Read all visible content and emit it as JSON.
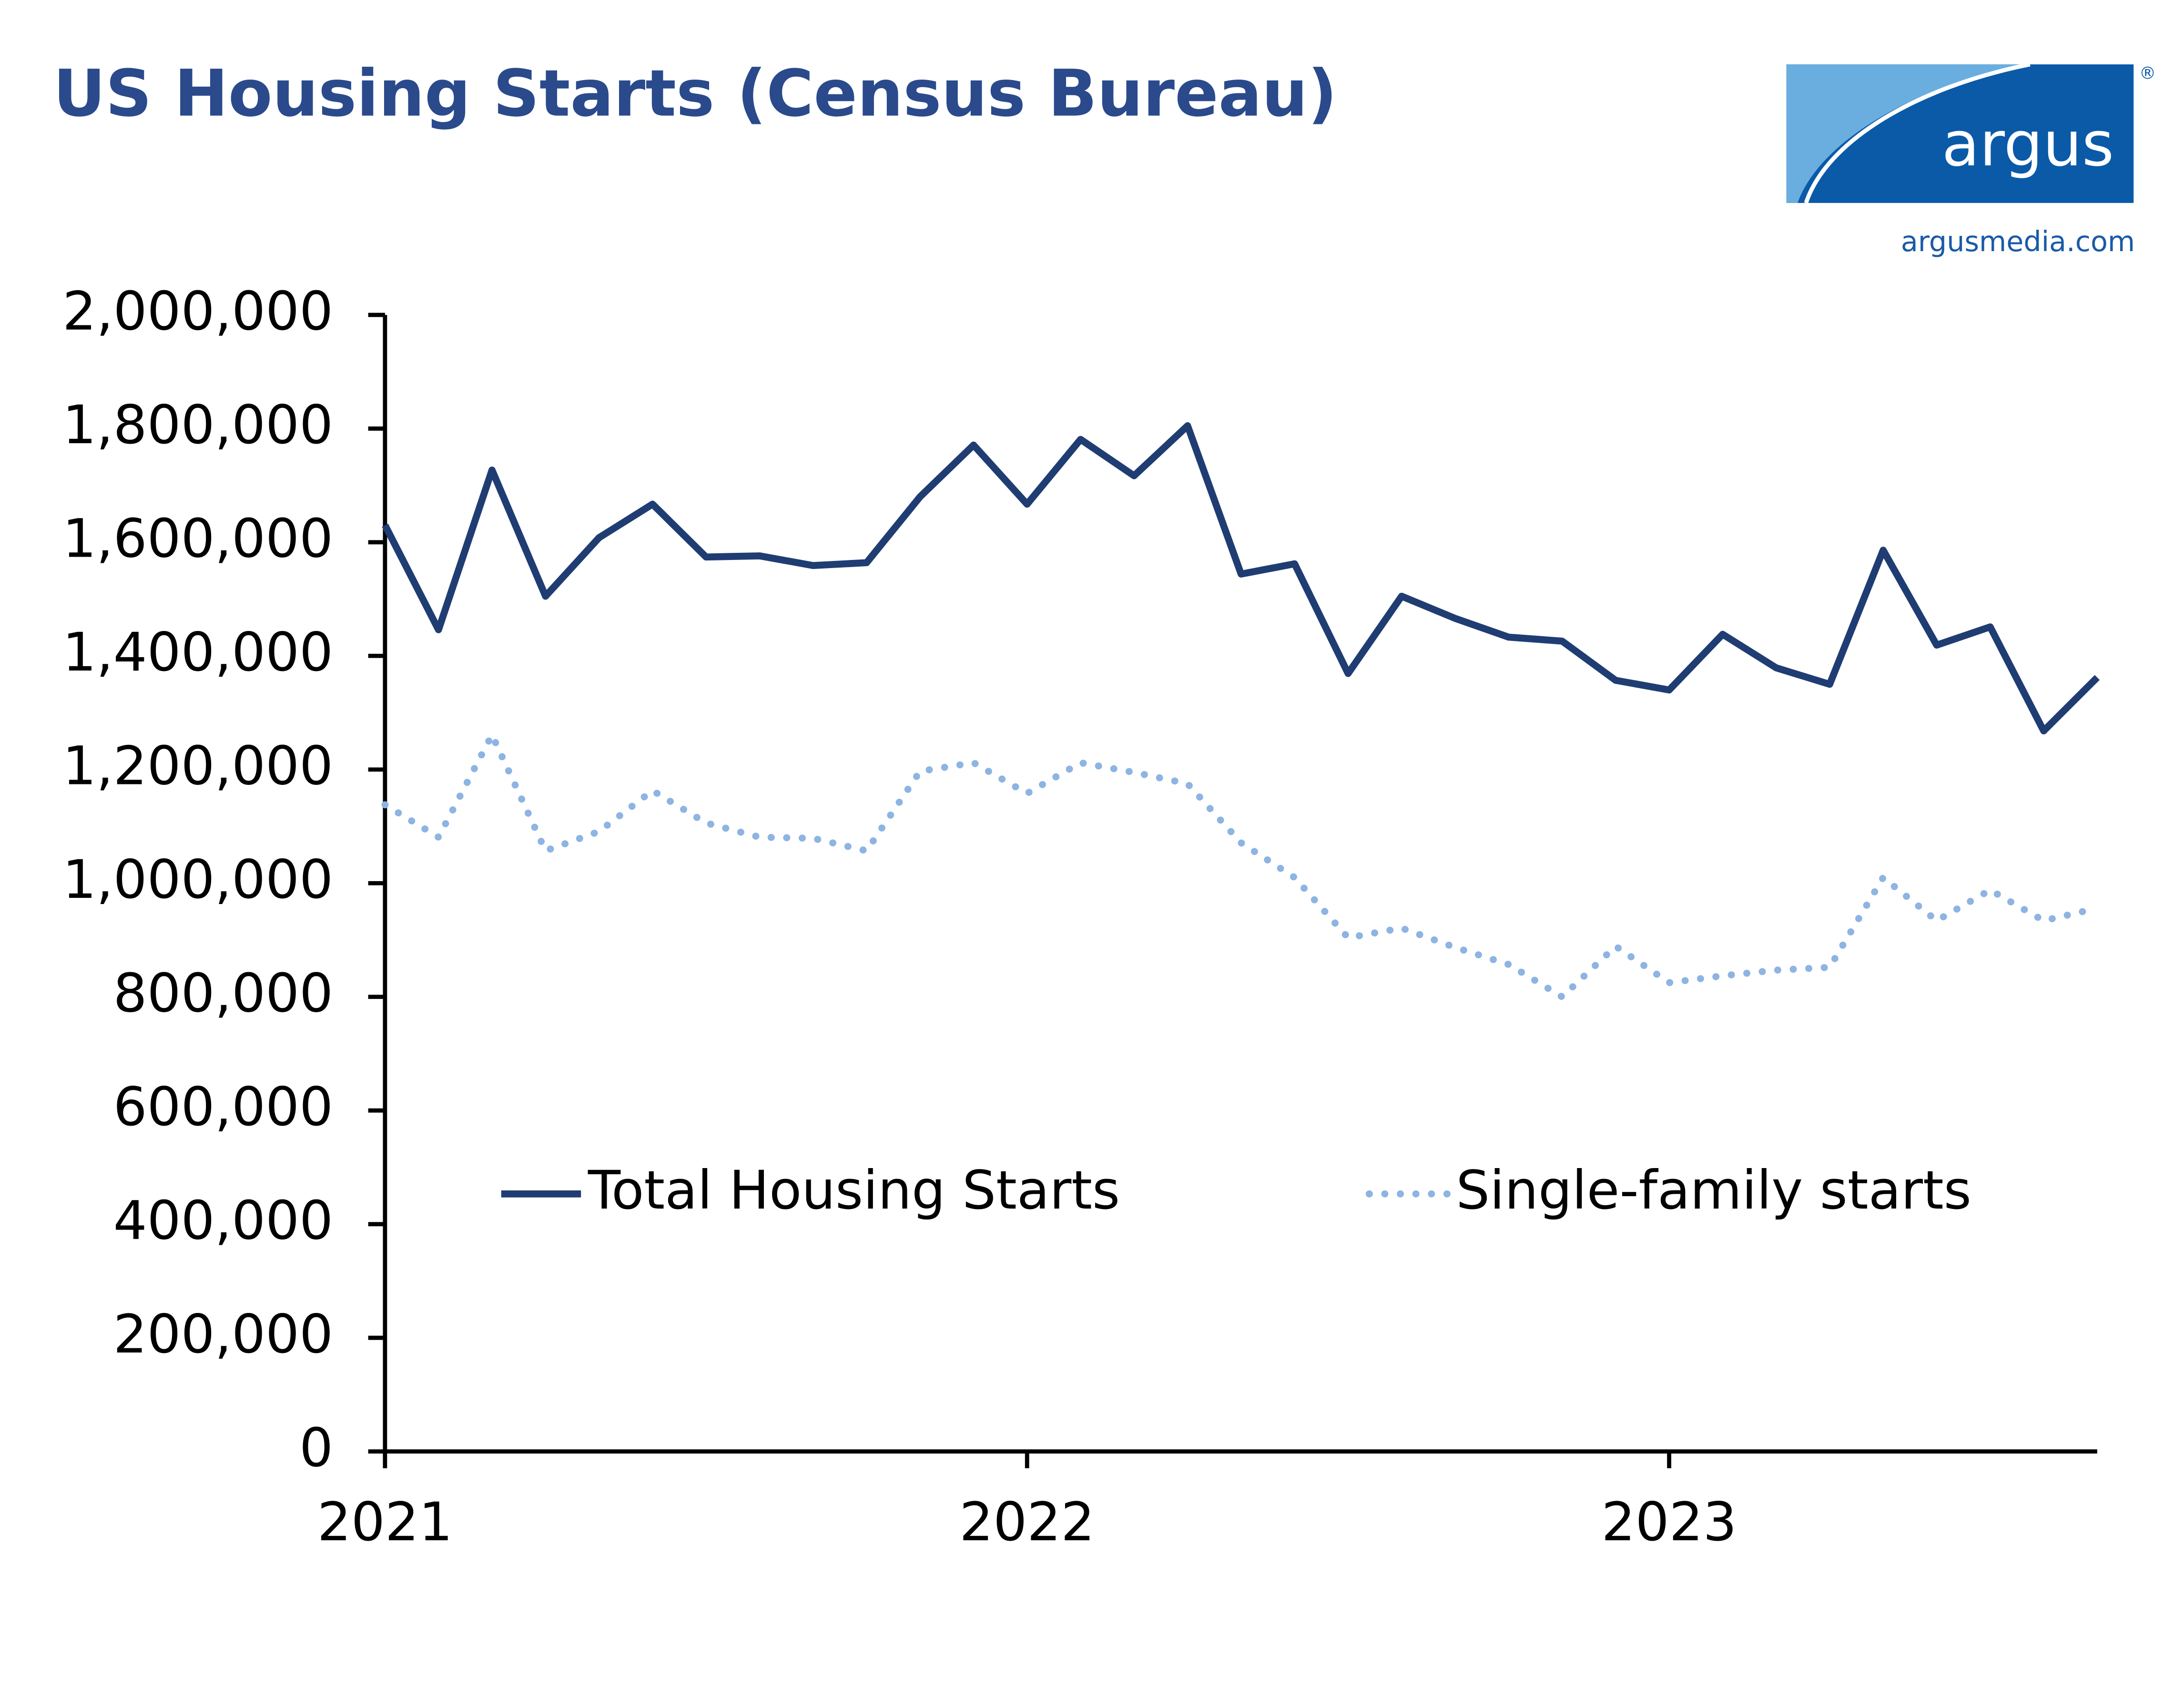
{
  "chart_data": {
    "type": "line",
    "title": "US Housing Starts (Census Bureau)",
    "categories": [
      "2021",
      null,
      null,
      null,
      null,
      null,
      null,
      null,
      null,
      null,
      null,
      null,
      "2022",
      null,
      null,
      null,
      null,
      null,
      null,
      null,
      null,
      null,
      null,
      null,
      "2023",
      null,
      null,
      null,
      null,
      null,
      null,
      null,
      null
    ],
    "series": [
      {
        "name": "Total Housing Starts",
        "color": "#1f3d73",
        "line_style": "solid",
        "values": [
          1630000,
          1446000,
          1727000,
          1505000,
          1608000,
          1667000,
          1574000,
          1576000,
          1559000,
          1564000,
          1680000,
          1771000,
          1667000,
          1781000,
          1717000,
          1805000,
          1544000,
          1562000,
          1369000,
          1505000,
          1466000,
          1433000,
          1426000,
          1357000,
          1340000,
          1438000,
          1379000,
          1350000,
          1586000,
          1419000,
          1451000,
          1268000,
          1362000
        ]
      },
      {
        "name": "Single-family starts",
        "color": "#8db4e2",
        "line_style": "dotted",
        "values": [
          1138000,
          1081000,
          1261000,
          1057000,
          1091000,
          1163000,
          1106000,
          1081000,
          1079000,
          1057000,
          1197000,
          1212000,
          1158000,
          1212000,
          1195000,
          1175000,
          1071000,
          1010000,
          904000,
          921000,
          887000,
          857000,
          800000,
          889000,
          825000,
          837000,
          847000,
          852000,
          1010000,
          934000,
          988000,
          934000,
          956000
        ]
      }
    ],
    "ylim": [
      0,
      2000000
    ],
    "yticks": [
      0,
      {
        "value": 200000,
        "label": "200,000"
      },
      {
        "value": 400000,
        "label": "400,000"
      },
      {
        "value": 600000,
        "label": "600,000"
      },
      {
        "value": 800000,
        "label": "800,000"
      },
      {
        "value": 1000000,
        "label": "1,000,000"
      },
      {
        "value": 1200000,
        "label": "1,200,000"
      },
      {
        "value": 1400000,
        "label": "1,400,000"
      },
      {
        "value": 1600000,
        "label": "1,600,000"
      },
      {
        "value": 1800000,
        "label": "1,800,000"
      },
      {
        "value": 2000000,
        "label": "2,000,000"
      }
    ],
    "grid": false,
    "legend": "center"
  },
  "logo": {
    "brand": "argus",
    "registered": "®",
    "url": "argusmedia.com"
  }
}
